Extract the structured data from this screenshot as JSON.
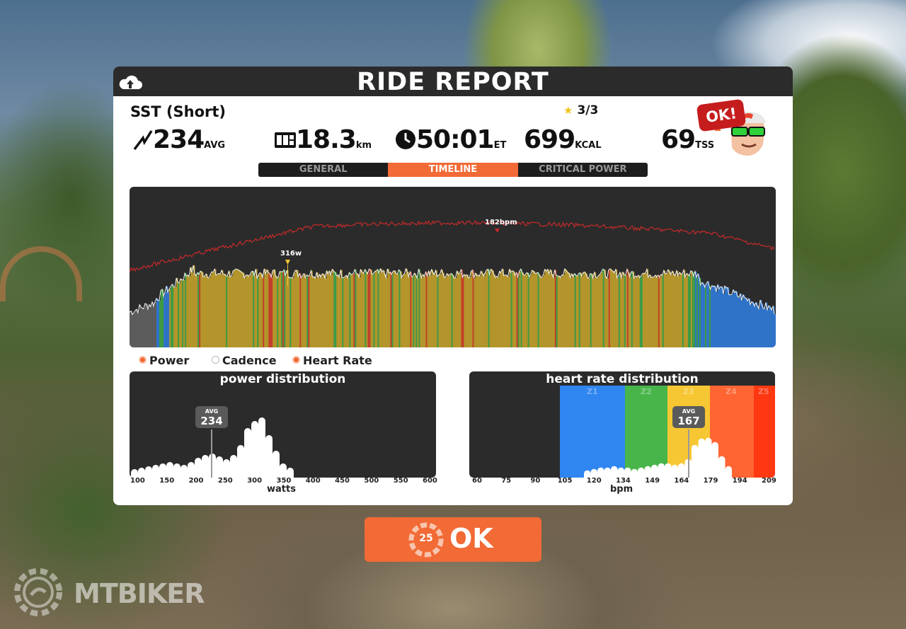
{
  "report": {
    "title": "RIDE REPORT",
    "workout_name": "SST (Short)",
    "stars": "3/3",
    "power_avg": "234",
    "power_unit": "AVG",
    "distance": "18.3",
    "distance_unit": "km",
    "time": "50:01",
    "time_unit": "ET",
    "calories": "699",
    "calories_unit": "KCAL",
    "tss": "69",
    "tss_unit": "TSS",
    "badge": "OK!"
  },
  "tabs": [
    {
      "label": "GENERAL",
      "active": false
    },
    {
      "label": "TIMELINE",
      "active": true
    },
    {
      "label": "CRITICAL POWER",
      "active": false
    }
  ],
  "timeline": {
    "peak_power_label": "316w",
    "peak_hr_label": "182bpm"
  },
  "legend": [
    {
      "label": "Power",
      "on": true
    },
    {
      "label": "Cadence",
      "on": false
    },
    {
      "label": "Heart Rate",
      "on": true
    }
  ],
  "power_distribution": {
    "title": "power distribution",
    "xlabel": "watts",
    "ticks": [
      "100",
      "150",
      "200",
      "250",
      "300",
      "350",
      "400",
      "450",
      "500",
      "550",
      "600"
    ],
    "avg_label": "AVG",
    "avg_value": "234"
  },
  "hr_distribution": {
    "title": "heart rate distribution",
    "xlabel": "bpm",
    "ticks": [
      "60",
      "75",
      "90",
      "105",
      "120",
      "134",
      "149",
      "164",
      "179",
      "194",
      "209"
    ],
    "zones": [
      "Z1",
      "Z2",
      "Z3",
      "Z4",
      "Z5"
    ],
    "avg_label": "AVG",
    "avg_value": "167"
  },
  "ok_button": {
    "label": "OK",
    "countdown": "25"
  },
  "watermark": {
    "text": "MTBIKER"
  },
  "colors": {
    "accent": "#f26a35",
    "panel": "#2b2b2b",
    "zone_blue": "#2f86f0",
    "zone_green": "#48b54a",
    "zone_yellow": "#f6c733",
    "zone_orange": "#ff6433",
    "zone_red": "#ff3812"
  }
}
